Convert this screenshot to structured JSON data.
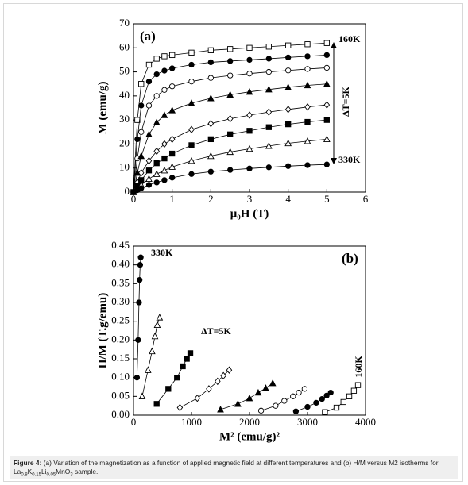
{
  "chart_data": [
    {
      "type": "line",
      "panel_label": "(a)",
      "x_label": "μ₀H (T)",
      "y_label": "M (emu/g)",
      "xlim": [
        0,
        6
      ],
      "xticks": [
        0,
        1,
        2,
        3,
        4,
        5,
        6
      ],
      "ylim": [
        0,
        70
      ],
      "yticks": [
        0,
        10,
        20,
        30,
        40,
        50,
        60,
        70
      ],
      "annotations": [
        "160K",
        "ΔT=5K",
        "330K"
      ],
      "x": [
        0,
        0.1,
        0.2,
        0.4,
        0.6,
        0.8,
        1,
        1.5,
        2,
        2.5,
        3,
        3.5,
        4,
        4.5,
        5
      ],
      "series": [
        {
          "color": "#000000",
          "marker": "square",
          "filled": false,
          "values": [
            0,
            30,
            45,
            53,
            55.5,
            56.5,
            57,
            58,
            59,
            59.5,
            60,
            60.5,
            61,
            61.5,
            62
          ]
        },
        {
          "color": "#000000",
          "marker": "circle",
          "filled": true,
          "values": [
            0,
            22,
            36,
            46,
            49,
            50.5,
            51.5,
            53,
            54,
            54.5,
            55,
            55.5,
            56,
            56.5,
            57
          ]
        },
        {
          "color": "#000000",
          "marker": "circle",
          "filled": false,
          "values": [
            0,
            14,
            25,
            36,
            40,
            42.5,
            44,
            46,
            47.5,
            48.5,
            49.3,
            50,
            50.6,
            51.2,
            51.7
          ]
        },
        {
          "color": "#000000",
          "marker": "triangle",
          "filled": true,
          "values": [
            0,
            8,
            15,
            24,
            29,
            32,
            34,
            37,
            39,
            40.5,
            41.7,
            42.7,
            43.6,
            44.4,
            45
          ]
        },
        {
          "color": "#000000",
          "marker": "diamond",
          "filled": false,
          "values": [
            0,
            4,
            8,
            13,
            17,
            20,
            22,
            26,
            28.5,
            30.5,
            32,
            33.3,
            34.4,
            35.4,
            36.3
          ]
        },
        {
          "color": "#000000",
          "marker": "square",
          "filled": true,
          "values": [
            0,
            2.5,
            5,
            9,
            12,
            14,
            16,
            19.5,
            22,
            24,
            25.5,
            27,
            28.2,
            29.2,
            30
          ]
        },
        {
          "color": "#000000",
          "marker": "triangle",
          "filled": false,
          "values": [
            0,
            1.5,
            3,
            5.5,
            7.5,
            9,
            10.5,
            13,
            15,
            16.7,
            18,
            19.2,
            20.3,
            21.2,
            22
          ]
        },
        {
          "color": "#000000",
          "marker": "circle",
          "filled": true,
          "values": [
            0,
            0.8,
            1.6,
            3,
            4,
            5,
            6,
            7.5,
            8.5,
            9.2,
            9.8,
            10.3,
            10.8,
            11.2,
            11.5
          ]
        }
      ]
    },
    {
      "type": "scatter",
      "panel_label": "(b)",
      "x_label": "M² (emu/g)²",
      "y_label": "H/M (T.g/emu)",
      "xlim": [
        0,
        4000
      ],
      "xticks": [
        0,
        1000,
        2000,
        3000,
        4000
      ],
      "ylim": [
        0,
        0.45
      ],
      "yticks": [
        {
          "value": 0,
          "label": "0.00"
        },
        0.05,
        {
          "value": 0.1,
          "label": "0.10"
        },
        0.15,
        {
          "value": 0.2,
          "label": "0.20"
        },
        0.25,
        {
          "value": 0.3,
          "label": "0.30"
        },
        0.35,
        {
          "value": 0.4,
          "label": "0.40"
        },
        0.45
      ],
      "annotations": [
        "330K",
        "ΔT=5K",
        "160K"
      ],
      "series": [
        {
          "color": "#000000",
          "marker": "circle",
          "filled": true,
          "x": [
            60,
            80,
            95,
            105,
            115,
            125
          ],
          "values": [
            0.1,
            0.2,
            0.3,
            0.36,
            0.4,
            0.42
          ]
        },
        {
          "color": "#000000",
          "marker": "triangle",
          "filled": false,
          "x": [
            150,
            250,
            320,
            370,
            410,
            450
          ],
          "values": [
            0.05,
            0.12,
            0.17,
            0.21,
            0.24,
            0.26
          ]
        },
        {
          "color": "#000000",
          "marker": "square",
          "filled": true,
          "x": [
            400,
            600,
            750,
            850,
            920,
            980
          ],
          "values": [
            0.03,
            0.07,
            0.1,
            0.13,
            0.15,
            0.165
          ]
        },
        {
          "color": "#000000",
          "marker": "diamond",
          "filled": false,
          "x": [
            800,
            1100,
            1300,
            1450,
            1550,
            1650
          ],
          "values": [
            0.02,
            0.045,
            0.07,
            0.09,
            0.105,
            0.12
          ]
        },
        {
          "color": "#000000",
          "marker": "triangle",
          "filled": true,
          "x": [
            1500,
            1800,
            2000,
            2150,
            2280,
            2400
          ],
          "values": [
            0.015,
            0.03,
            0.045,
            0.06,
            0.072,
            0.085
          ]
        },
        {
          "color": "#000000",
          "marker": "circle",
          "filled": false,
          "x": [
            2200,
            2450,
            2600,
            2750,
            2850,
            2950
          ],
          "values": [
            0.012,
            0.025,
            0.038,
            0.05,
            0.06,
            0.07
          ]
        },
        {
          "color": "#000000",
          "marker": "circle",
          "filled": true,
          "x": [
            2800,
            3000,
            3150,
            3250,
            3330,
            3400
          ],
          "values": [
            0.01,
            0.022,
            0.033,
            0.043,
            0.052,
            0.06
          ]
        },
        {
          "color": "#000000",
          "marker": "square",
          "filled": false,
          "x": [
            3300,
            3500,
            3620,
            3720,
            3800,
            3870
          ],
          "values": [
            0.008,
            0.02,
            0.035,
            0.05,
            0.065,
            0.08
          ]
        }
      ]
    }
  ],
  "caption": {
    "label": "Figure 4:",
    "text": "(a) Variation of the magnetization as a function of applied magnetic field at different temperatures and (b) H/M versus M2 isotherms for",
    "formula": [
      "La",
      "0.8",
      "K",
      "0.15",
      "Li",
      "0.05",
      "MnO",
      "3"
    ],
    "tail": "sample."
  }
}
